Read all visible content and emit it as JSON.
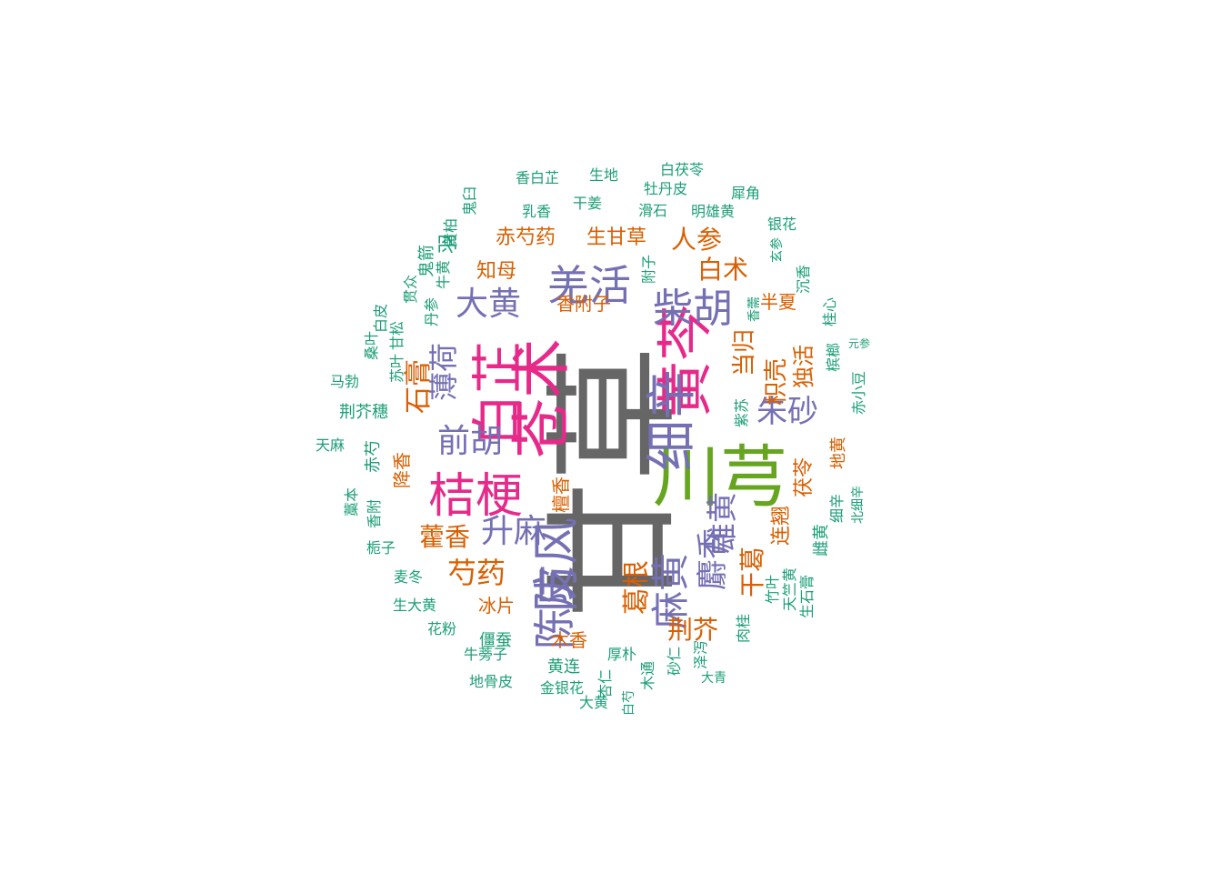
{
  "colors": {
    "gray": "#666666",
    "green": "#66a61e",
    "pink": "#e7298a",
    "purple": "#7570b3",
    "orange": "#d95f02",
    "teal": "#1b9e77"
  },
  "words": [
    {
      "text": "甘草",
      "color": "gray"
    },
    {
      "text": "川芎",
      "color": "green"
    },
    {
      "text": "苍术",
      "color": "pink"
    },
    {
      "text": "白芷",
      "color": "pink"
    },
    {
      "text": "黄芩",
      "color": "pink"
    },
    {
      "text": "桔梗",
      "color": "pink"
    },
    {
      "text": "细辛",
      "color": "purple"
    },
    {
      "text": "防风",
      "color": "purple"
    },
    {
      "text": "羌活",
      "color": "purple"
    },
    {
      "text": "柴胡",
      "color": "purple"
    },
    {
      "text": "大黄",
      "color": "purple"
    },
    {
      "text": "前胡",
      "color": "purple"
    },
    {
      "text": "升麻",
      "color": "purple"
    },
    {
      "text": "陈皮",
      "color": "purple"
    },
    {
      "text": "麻黄",
      "color": "purple"
    },
    {
      "text": "雄黄",
      "color": "purple"
    },
    {
      "text": "麝香",
      "color": "purple"
    },
    {
      "text": "朱砂",
      "color": "purple"
    },
    {
      "text": "薄荷",
      "color": "purple"
    },
    {
      "text": "石膏",
      "color": "orange"
    },
    {
      "text": "藿香",
      "color": "orange"
    },
    {
      "text": "芍药",
      "color": "orange"
    },
    {
      "text": "葛根",
      "color": "orange"
    },
    {
      "text": "干葛",
      "color": "orange"
    },
    {
      "text": "荆芥",
      "color": "orange"
    },
    {
      "text": "当归",
      "color": "orange"
    },
    {
      "text": "枳壳",
      "color": "orange"
    },
    {
      "text": "独活",
      "color": "orange"
    },
    {
      "text": "白术",
      "color": "orange"
    },
    {
      "text": "人参",
      "color": "orange"
    },
    {
      "text": "生甘草",
      "color": "orange"
    },
    {
      "text": "赤芍药",
      "color": "orange"
    },
    {
      "text": "知母",
      "color": "orange"
    },
    {
      "text": "香附子",
      "color": "orange"
    },
    {
      "text": "连翘",
      "color": "orange"
    },
    {
      "text": "茯苓",
      "color": "orange"
    },
    {
      "text": "冰片",
      "color": "orange"
    },
    {
      "text": "木香",
      "color": "orange"
    },
    {
      "text": "降香",
      "color": "orange"
    },
    {
      "text": "檀香",
      "color": "orange"
    },
    {
      "text": "半夏",
      "color": "orange"
    },
    {
      "text": "地黄",
      "color": "orange"
    },
    {
      "text": "僵蚕",
      "color": "teal"
    },
    {
      "text": "黄连",
      "color": "teal"
    },
    {
      "text": "厚朴",
      "color": "teal"
    },
    {
      "text": "砂仁",
      "color": "teal"
    },
    {
      "text": "泽泻",
      "color": "teal"
    },
    {
      "text": "大青",
      "color": "teal"
    },
    {
      "text": "肉桂",
      "color": "teal"
    },
    {
      "text": "竹叶",
      "color": "teal"
    },
    {
      "text": "生石膏",
      "color": "teal"
    },
    {
      "text": "天竺黄",
      "color": "teal"
    },
    {
      "text": "雌黄",
      "color": "teal"
    },
    {
      "text": "细辛",
      "color": "teal"
    },
    {
      "text": "北细辛",
      "color": "teal"
    },
    {
      "text": "赤小豆",
      "color": "teal"
    },
    {
      "text": "槟榔",
      "color": "teal"
    },
    {
      "text": "元参",
      "color": "teal"
    },
    {
      "text": "紫苏",
      "color": "teal"
    },
    {
      "text": "桂心",
      "color": "teal"
    },
    {
      "text": "香薷",
      "color": "teal"
    },
    {
      "text": "沉香",
      "color": "teal"
    },
    {
      "text": "玄参",
      "color": "teal"
    },
    {
      "text": "银花",
      "color": "teal"
    },
    {
      "text": "犀角",
      "color": "teal"
    },
    {
      "text": "明雄黄",
      "color": "teal"
    },
    {
      "text": "白茯苓",
      "color": "teal"
    },
    {
      "text": "牡丹皮",
      "color": "teal"
    },
    {
      "text": "滑石",
      "color": "teal"
    },
    {
      "text": "附子",
      "color": "teal"
    },
    {
      "text": "生地",
      "color": "teal"
    },
    {
      "text": "干姜",
      "color": "teal"
    },
    {
      "text": "乳香",
      "color": "teal"
    },
    {
      "text": "香白芷",
      "color": "teal"
    },
    {
      "text": "鬼臼",
      "color": "teal"
    },
    {
      "text": "黄柏",
      "color": "teal"
    },
    {
      "text": "羽",
      "color": "teal"
    },
    {
      "text": "鬼箭",
      "color": "teal"
    },
    {
      "text": "牛黄",
      "color": "teal"
    },
    {
      "text": "贯众",
      "color": "teal"
    },
    {
      "text": "丹参",
      "color": "teal"
    },
    {
      "text": "白皮",
      "color": "teal"
    },
    {
      "text": "甘松",
      "color": "teal"
    },
    {
      "text": "桑叶",
      "color": "teal"
    },
    {
      "text": "苏叶",
      "color": "teal"
    },
    {
      "text": "马勃",
      "color": "teal"
    },
    {
      "text": "荆芥穗",
      "color": "teal"
    },
    {
      "text": "天麻",
      "color": "teal"
    },
    {
      "text": "赤芍",
      "color": "teal"
    },
    {
      "text": "藁本",
      "color": "teal"
    },
    {
      "text": "香附",
      "color": "teal"
    },
    {
      "text": "栀子",
      "color": "teal"
    },
    {
      "text": "麦冬",
      "color": "teal"
    },
    {
      "text": "生大黄",
      "color": "teal"
    },
    {
      "text": "花粉",
      "color": "teal"
    },
    {
      "text": "牛蒡子",
      "color": "teal"
    },
    {
      "text": "地骨皮",
      "color": "teal"
    },
    {
      "text": "金银花",
      "color": "teal"
    },
    {
      "text": "大黄",
      "color": "teal"
    },
    {
      "text": "杏仁",
      "color": "teal"
    },
    {
      "text": "白芍",
      "color": "teal"
    },
    {
      "text": "木通",
      "color": "teal"
    }
  ]
}
